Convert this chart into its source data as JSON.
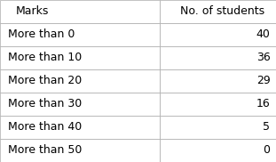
{
  "col1_header": "Marks",
  "col2_header": "No. of students",
  "rows": [
    [
      "More than 0",
      "40"
    ],
    [
      "More than 10",
      "36"
    ],
    [
      "More than 20",
      "29"
    ],
    [
      "More than 30",
      "16"
    ],
    [
      "More than 40",
      "5"
    ],
    [
      "More than 50",
      "0"
    ]
  ],
  "header_bg": "#ffffff",
  "row_bg": "#ffffff",
  "text_color": "#000000",
  "border_color": "#aaaaaa",
  "font_size": 9,
  "header_font_size": 9
}
